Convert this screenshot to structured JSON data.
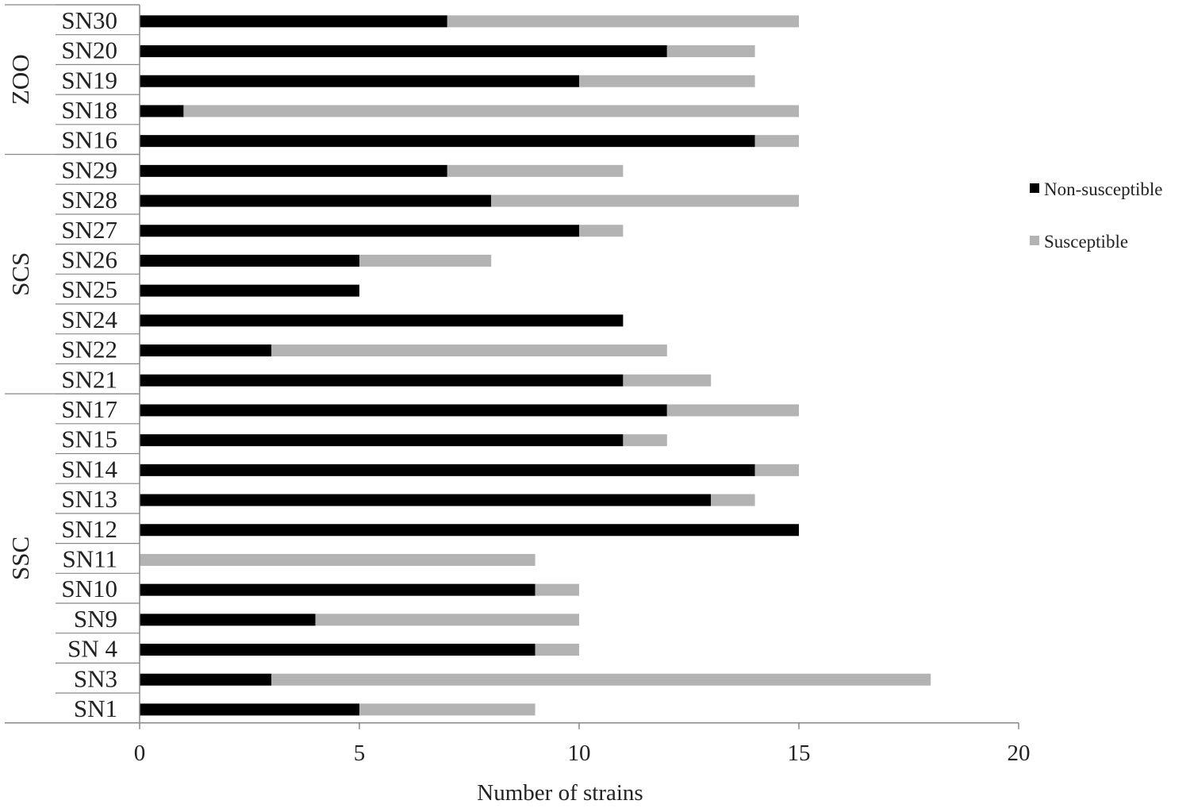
{
  "chart_data": {
    "type": "bar",
    "orientation": "horizontal",
    "stacked": true,
    "title": "",
    "xlabel": "Number of strains",
    "ylabel": "",
    "xlim": [
      0,
      20
    ],
    "xticks": [
      0,
      5,
      10,
      15,
      20
    ],
    "grid": false,
    "legend_position": "right",
    "groups": [
      {
        "name": "ZOO",
        "categories": [
          "SN30",
          "SN20",
          "SN19",
          "SN18",
          "SN16"
        ]
      },
      {
        "name": "SCS",
        "categories": [
          "SN29",
          "SN28",
          "SN27",
          "SN26",
          "SN25",
          "SN24",
          "SN22",
          "SN21"
        ]
      },
      {
        "name": "SSC",
        "categories": [
          "SN17",
          "SN15",
          "SN14",
          "SN13",
          "SN12",
          "SN11",
          "SN10",
          "SN9",
          "SN 4",
          "SN3",
          "SN1"
        ]
      }
    ],
    "categories": [
      "SN30",
      "SN20",
      "SN19",
      "SN18",
      "SN16",
      "SN29",
      "SN28",
      "SN27",
      "SN26",
      "SN25",
      "SN24",
      "SN22",
      "SN21",
      "SN17",
      "SN15",
      "SN14",
      "SN13",
      "SN12",
      "SN11",
      "SN10",
      "SN9",
      "SN 4",
      "SN3",
      "SN1"
    ],
    "series": [
      {
        "name": "Non-susceptible",
        "color": "#000000",
        "values": [
          7,
          12,
          10,
          1,
          14,
          7,
          8,
          10,
          5,
          5,
          11,
          3,
          11,
          12,
          11,
          14,
          13,
          15,
          0,
          9,
          4,
          9,
          3,
          5
        ]
      },
      {
        "name": "Susceptible",
        "color": "#b3b3b3",
        "values": [
          8,
          2,
          4,
          14,
          1,
          4,
          7,
          1,
          3,
          0,
          0,
          9,
          2,
          3,
          1,
          1,
          1,
          0,
          9,
          1,
          6,
          1,
          15,
          4
        ]
      }
    ]
  },
  "colors": {
    "axis": "#888888",
    "text": "#222222"
  }
}
